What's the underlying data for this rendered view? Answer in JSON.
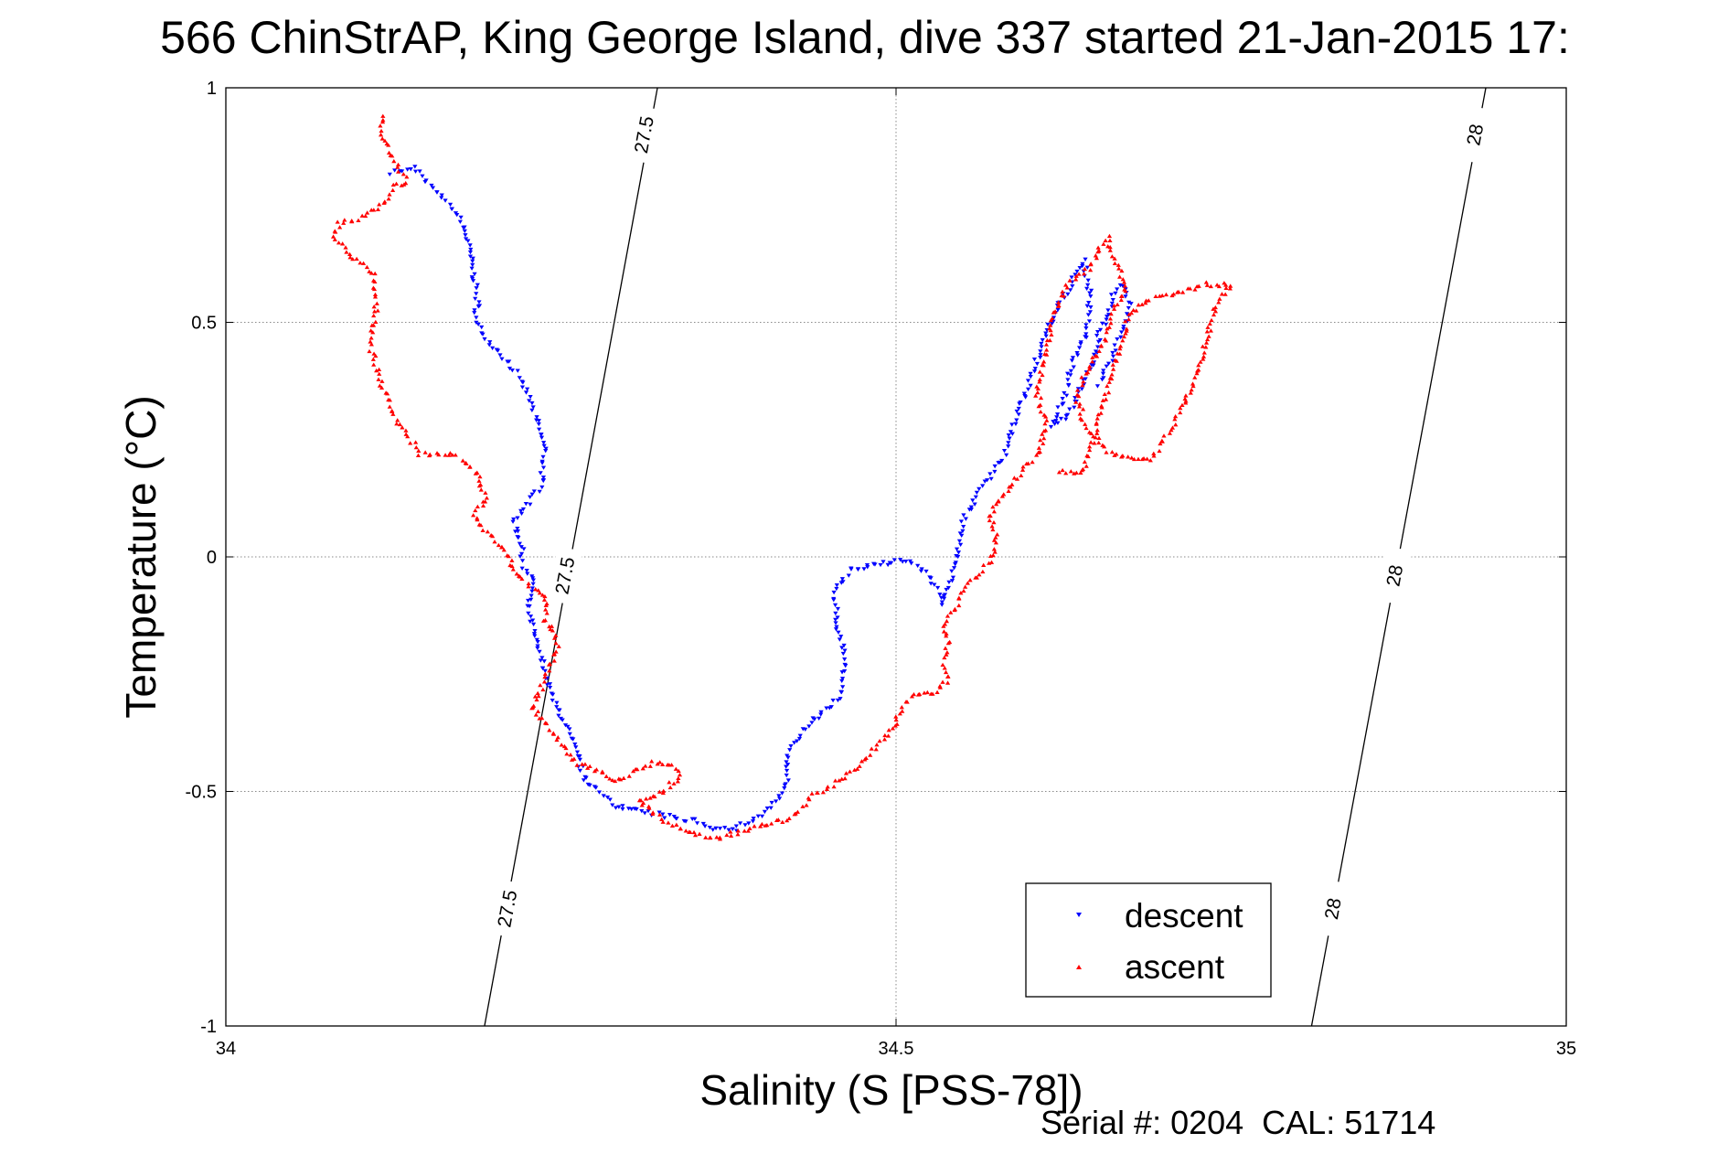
{
  "chart_data": {
    "type": "scatter",
    "title": "566 ChinStrAP, King George Island, dive 337 started 21-Jan-2015 17:",
    "xlabel": "Salinity (S [PSS-78])",
    "ylabel": "Temperature (°C)",
    "xlim": [
      34,
      35
    ],
    "ylim": [
      -1,
      1
    ],
    "xticks": [
      34,
      34.5,
      35
    ],
    "xtick_labels": [
      "34",
      "34.5",
      "35"
    ],
    "yticks": [
      -1,
      -0.5,
      0,
      0.5,
      1
    ],
    "ytick_labels": [
      "-1",
      "-0.5",
      "0",
      "0.5",
      "1"
    ],
    "grid": true,
    "legend": {
      "placement": "bottom-right",
      "entries": [
        "descent",
        "ascent"
      ]
    },
    "contours": [
      {
        "label": "27.5",
        "color": "#000000",
        "points": [
          [
            34.193,
            -1
          ],
          [
            34.322,
            1
          ]
        ],
        "label_positions": [
          [
            34.21,
            -0.75
          ],
          [
            34.253,
            -0.04
          ],
          [
            34.312,
            0.9
          ]
        ]
      },
      {
        "label": "28",
        "color": "#000000",
        "points": [
          [
            34.81,
            -1
          ],
          [
            34.94,
            1
          ]
        ],
        "label_positions": [
          [
            34.826,
            -0.75
          ],
          [
            34.872,
            -0.04
          ],
          [
            34.932,
            0.9
          ]
        ]
      }
    ],
    "series": [
      {
        "name": "descent",
        "color": "#0000ff",
        "marker": "triangle-down",
        "path": [
          [
            34.124,
            0.82
          ],
          [
            34.14,
            0.83
          ],
          [
            34.15,
            0.8
          ],
          [
            34.16,
            0.77
          ],
          [
            34.17,
            0.74
          ],
          [
            34.178,
            0.7
          ],
          [
            34.182,
            0.65
          ],
          [
            34.185,
            0.6
          ],
          [
            34.188,
            0.54
          ],
          [
            34.186,
            0.5
          ],
          [
            34.2,
            0.45
          ],
          [
            34.215,
            0.4
          ],
          [
            34.225,
            0.35
          ],
          [
            34.233,
            0.28
          ],
          [
            34.238,
            0.23
          ],
          [
            34.235,
            0.15
          ],
          [
            34.225,
            0.11
          ],
          [
            34.215,
            0.08
          ],
          [
            34.22,
            0.03
          ],
          [
            34.222,
            -0.02
          ],
          [
            34.23,
            -0.05
          ],
          [
            34.225,
            -0.1
          ],
          [
            34.228,
            -0.14
          ],
          [
            34.232,
            -0.19
          ],
          [
            34.238,
            -0.24
          ],
          [
            34.242,
            -0.29
          ],
          [
            34.252,
            -0.35
          ],
          [
            34.262,
            -0.42
          ],
          [
            34.268,
            -0.48
          ],
          [
            34.28,
            -0.5
          ],
          [
            34.29,
            -0.53
          ],
          [
            34.305,
            -0.54
          ],
          [
            34.325,
            -0.55
          ],
          [
            34.338,
            -0.56
          ],
          [
            34.35,
            -0.56
          ],
          [
            34.365,
            -0.58
          ],
          [
            34.38,
            -0.58
          ],
          [
            34.392,
            -0.56
          ],
          [
            34.4,
            -0.55
          ],
          [
            34.41,
            -0.52
          ],
          [
            34.418,
            -0.49
          ],
          [
            34.42,
            -0.42
          ],
          [
            34.43,
            -0.37
          ],
          [
            34.445,
            -0.33
          ],
          [
            34.458,
            -0.3
          ],
          [
            34.46,
            -0.25
          ],
          [
            34.462,
            -0.2
          ],
          [
            34.455,
            -0.14
          ],
          [
            34.455,
            -0.07
          ],
          [
            34.465,
            -0.03
          ],
          [
            34.48,
            -0.02
          ],
          [
            34.495,
            -0.01
          ],
          [
            34.505,
            -0.005
          ],
          [
            34.515,
            -0.02
          ],
          [
            34.525,
            -0.04
          ],
          [
            34.53,
            -0.07
          ],
          [
            34.535,
            -0.1
          ],
          [
            34.538,
            -0.08
          ],
          [
            34.542,
            -0.04
          ],
          [
            34.545,
            0.0
          ],
          [
            34.548,
            0.05
          ],
          [
            34.552,
            0.09
          ],
          [
            34.56,
            0.13
          ],
          [
            34.57,
            0.17
          ],
          [
            34.58,
            0.21
          ],
          [
            34.585,
            0.25
          ],
          [
            34.59,
            0.3
          ],
          [
            34.598,
            0.36
          ],
          [
            34.605,
            0.42
          ],
          [
            34.612,
            0.47
          ],
          [
            34.618,
            0.52
          ],
          [
            34.625,
            0.55
          ],
          [
            34.63,
            0.58
          ],
          [
            34.635,
            0.61
          ],
          [
            34.64,
            0.63
          ],
          [
            34.645,
            0.56
          ],
          [
            34.642,
            0.48
          ],
          [
            34.63,
            0.4
          ],
          [
            34.625,
            0.33
          ],
          [
            34.615,
            0.28
          ],
          [
            34.628,
            0.3
          ],
          [
            34.64,
            0.37
          ],
          [
            34.648,
            0.42
          ],
          [
            34.652,
            0.48
          ],
          [
            34.658,
            0.52
          ],
          [
            34.662,
            0.56
          ],
          [
            34.668,
            0.58
          ],
          [
            34.672,
            0.56
          ],
          [
            34.675,
            0.53
          ],
          [
            34.67,
            0.5
          ],
          [
            34.665,
            0.46
          ],
          [
            34.66,
            0.42
          ],
          [
            34.655,
            0.39
          ],
          [
            34.65,
            0.36
          ]
        ]
      },
      {
        "name": "ascent",
        "color": "#ff0000",
        "marker": "triangle-up",
        "path": [
          [
            34.118,
            0.94
          ],
          [
            34.116,
            0.91
          ],
          [
            34.12,
            0.88
          ],
          [
            34.124,
            0.85
          ],
          [
            34.13,
            0.82
          ],
          [
            34.135,
            0.8
          ],
          [
            34.125,
            0.79
          ],
          [
            34.12,
            0.76
          ],
          [
            34.11,
            0.74
          ],
          [
            34.098,
            0.72
          ],
          [
            34.085,
            0.71
          ],
          [
            34.08,
            0.68
          ],
          [
            34.11,
            0.6
          ],
          [
            34.112,
            0.52
          ],
          [
            34.108,
            0.45
          ],
          [
            34.118,
            0.35
          ],
          [
            34.13,
            0.28
          ],
          [
            34.145,
            0.22
          ],
          [
            34.168,
            0.22
          ],
          [
            34.18,
            0.2
          ],
          [
            34.188,
            0.17
          ],
          [
            34.195,
            0.12
          ],
          [
            34.185,
            0.09
          ],
          [
            34.195,
            0.05
          ],
          [
            34.2,
            0.04
          ],
          [
            34.212,
            0.0
          ],
          [
            34.215,
            -0.03
          ],
          [
            34.222,
            -0.05
          ],
          [
            34.232,
            -0.07
          ],
          [
            34.24,
            -0.1
          ],
          [
            34.238,
            -0.14
          ],
          [
            34.245,
            -0.16
          ],
          [
            34.248,
            -0.2
          ],
          [
            34.24,
            -0.24
          ],
          [
            34.235,
            -0.28
          ],
          [
            34.228,
            -0.32
          ],
          [
            34.24,
            -0.36
          ],
          [
            34.25,
            -0.4
          ],
          [
            34.262,
            -0.44
          ],
          [
            34.272,
            -0.45
          ],
          [
            34.282,
            -0.46
          ],
          [
            34.29,
            -0.48
          ],
          [
            34.298,
            -0.47
          ],
          [
            34.308,
            -0.45
          ],
          [
            34.318,
            -0.44
          ],
          [
            34.33,
            -0.44
          ],
          [
            34.336,
            -0.45
          ],
          [
            34.338,
            -0.47
          ],
          [
            34.33,
            -0.49
          ],
          [
            34.32,
            -0.51
          ],
          [
            34.308,
            -0.52
          ],
          [
            34.32,
            -0.55
          ],
          [
            34.33,
            -0.57
          ],
          [
            34.34,
            -0.58
          ],
          [
            34.352,
            -0.59
          ],
          [
            34.365,
            -0.6
          ],
          [
            34.378,
            -0.59
          ],
          [
            34.392,
            -0.58
          ],
          [
            34.405,
            -0.57
          ],
          [
            34.418,
            -0.56
          ],
          [
            34.428,
            -0.54
          ],
          [
            34.438,
            -0.51
          ],
          [
            34.45,
            -0.49
          ],
          [
            34.462,
            -0.47
          ],
          [
            34.472,
            -0.45
          ],
          [
            34.48,
            -0.42
          ],
          [
            34.49,
            -0.39
          ],
          [
            34.498,
            -0.36
          ],
          [
            34.505,
            -0.32
          ],
          [
            34.515,
            -0.29
          ],
          [
            34.528,
            -0.29
          ],
          [
            34.54,
            -0.26
          ],
          [
            34.535,
            -0.22
          ],
          [
            34.54,
            -0.18
          ],
          [
            34.535,
            -0.14
          ],
          [
            34.545,
            -0.11
          ],
          [
            34.55,
            -0.07
          ],
          [
            34.56,
            -0.04
          ],
          [
            34.57,
            -0.01
          ],
          [
            34.575,
            0.04
          ],
          [
            34.57,
            0.09
          ],
          [
            34.578,
            0.12
          ],
          [
            34.59,
            0.17
          ],
          [
            34.6,
            0.2
          ],
          [
            34.608,
            0.23
          ],
          [
            34.612,
            0.28
          ],
          [
            34.605,
            0.35
          ],
          [
            34.61,
            0.42
          ],
          [
            34.615,
            0.48
          ],
          [
            34.62,
            0.54
          ],
          [
            34.628,
            0.58
          ],
          [
            34.638,
            0.6
          ],
          [
            34.646,
            0.62
          ],
          [
            34.652,
            0.66
          ],
          [
            34.658,
            0.68
          ],
          [
            34.662,
            0.64
          ],
          [
            34.668,
            0.6
          ],
          [
            34.672,
            0.57
          ],
          [
            34.665,
            0.54
          ],
          [
            34.66,
            0.5
          ],
          [
            34.655,
            0.46
          ],
          [
            34.648,
            0.42
          ],
          [
            34.64,
            0.38
          ],
          [
            34.635,
            0.34
          ],
          [
            34.64,
            0.29
          ],
          [
            34.65,
            0.25
          ],
          [
            34.66,
            0.22
          ],
          [
            34.672,
            0.21
          ],
          [
            34.69,
            0.21
          ],
          [
            34.7,
            0.25
          ],
          [
            34.71,
            0.3
          ],
          [
            34.72,
            0.36
          ],
          [
            34.726,
            0.4
          ],
          [
            34.73,
            0.45
          ],
          [
            34.735,
            0.5
          ],
          [
            34.74,
            0.55
          ],
          [
            34.75,
            0.58
          ],
          [
            34.73,
            0.58
          ],
          [
            34.71,
            0.56
          ],
          [
            34.69,
            0.55
          ],
          [
            34.675,
            0.52
          ],
          [
            34.64,
            0.18
          ],
          [
            34.618,
            0.18
          ]
        ]
      }
    ]
  },
  "footer": {
    "text": "Serial #: 0204  CAL: 51714"
  }
}
